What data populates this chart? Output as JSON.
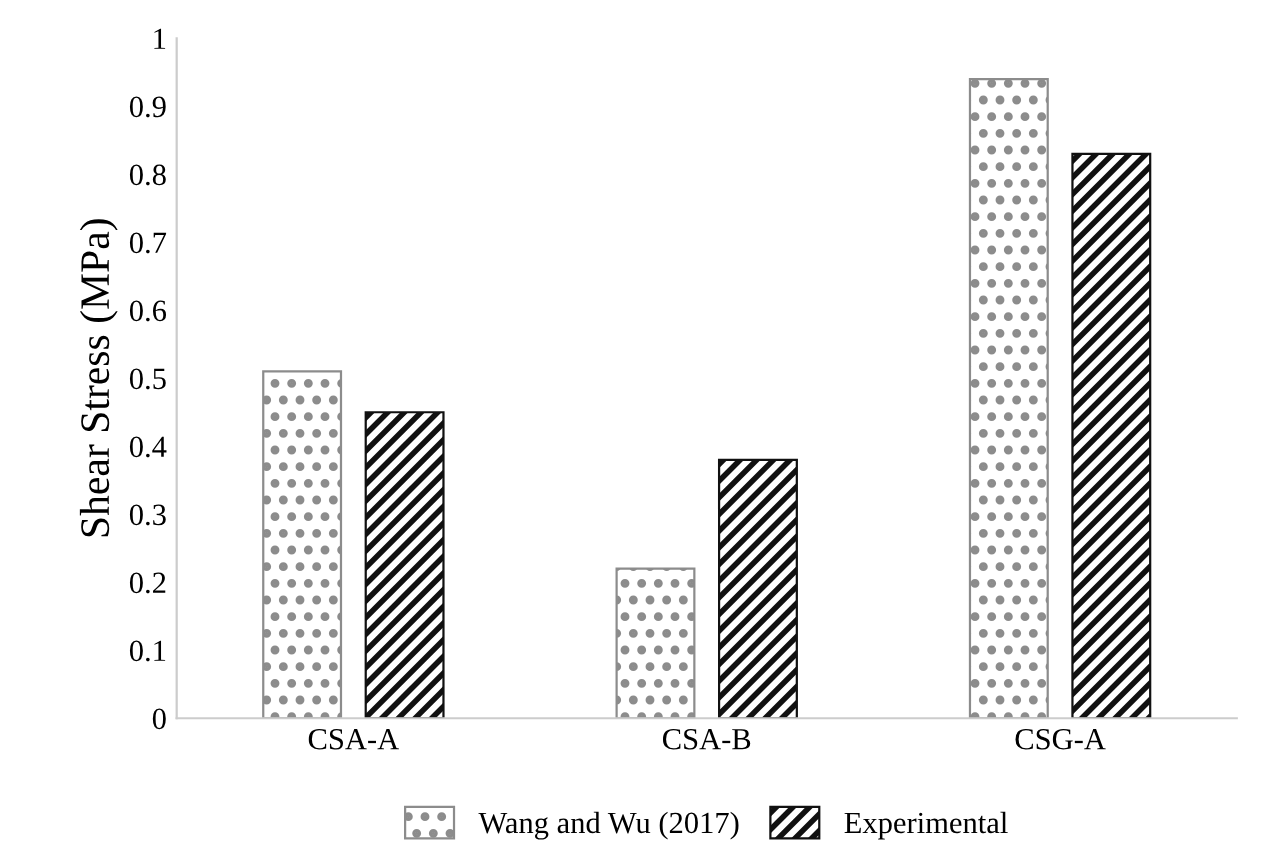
{
  "chart_data": {
    "type": "bar",
    "ylabel": "Shear Stress (MPa)",
    "categories": [
      "CSA-A",
      "CSA-B",
      "CSG-A"
    ],
    "series": [
      {
        "name": "Wang and Wu (2017)",
        "color": "#8c8c8c",
        "values": [
          0.51,
          0.22,
          0.94
        ]
      },
      {
        "name": "Experimental",
        "color": "#111111",
        "values": [
          0.45,
          0.38,
          0.83
        ]
      }
    ],
    "ylim": [
      0,
      1
    ],
    "yticks": [
      0,
      0.1,
      0.2,
      0.3,
      0.4,
      0.5,
      0.6,
      0.7,
      0.8,
      0.9,
      1
    ],
    "grid": false,
    "legend": "bottom"
  }
}
